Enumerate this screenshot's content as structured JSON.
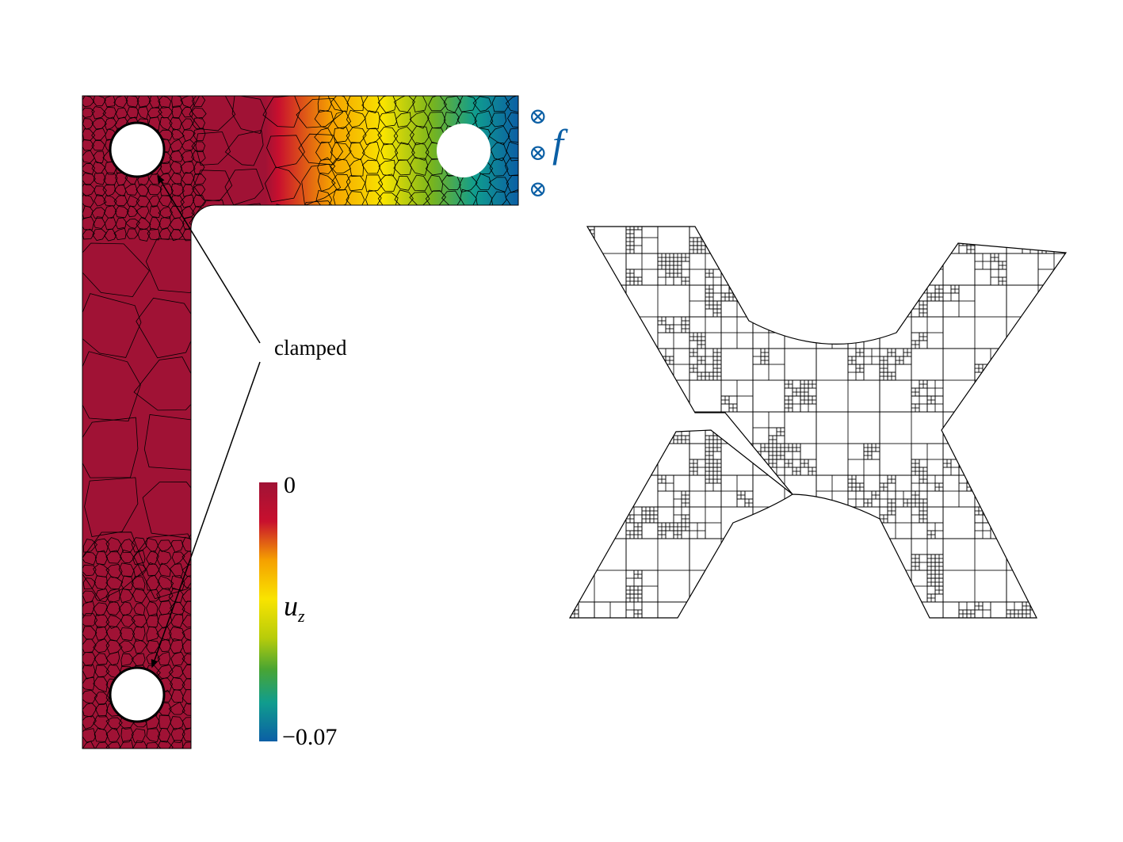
{
  "left_figure": {
    "annotation": "clamped",
    "force_label": "f",
    "force_symbol": "⊗",
    "force_color": "#0b5fa5",
    "colorbar": {
      "max_label": "0",
      "min_label": "−0.07",
      "variable_label": "u",
      "variable_subscript": "z",
      "colors": [
        "#a01235",
        "#c8102e",
        "#ee7a1a",
        "#f9e400",
        "#b8cc0a",
        "#4aa532",
        "#109d8e",
        "#0b5fa5"
      ]
    }
  },
  "right_figure": {}
}
